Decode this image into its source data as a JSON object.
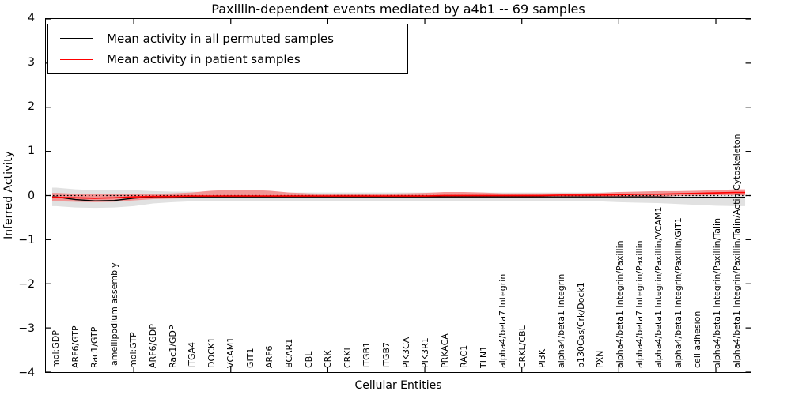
{
  "title": "Paxillin-dependent events mediated by a4b1 -- 69 samples",
  "axes": {
    "ylabel": "Inferred Activity",
    "xlabel": "Cellular Entities",
    "ytick_labels": [
      "4",
      "3",
      "2",
      "1",
      "0",
      "−1",
      "−2",
      "−3",
      "−4"
    ]
  },
  "legend": {
    "items": [
      {
        "label": "Mean activity in all permuted samples",
        "color": "#000000"
      },
      {
        "label": "Mean activity in patient samples",
        "color": "#ff0000"
      }
    ]
  },
  "chart_data": {
    "type": "line",
    "title": "Paxillin-dependent events mediated by a4b1 -- 69 samples",
    "xlabel": "Cellular Entities",
    "ylabel": "Inferred Activity",
    "ylim": [
      -4,
      4
    ],
    "yticks": [
      4,
      3,
      2,
      1,
      0,
      -1,
      -2,
      -3,
      -4
    ],
    "grid": false,
    "legend_position": "upper left",
    "categories": [
      "mol:GDP",
      "ARF6/GTP",
      "Rac1/GTP",
      "lamellipodium assembly",
      "mol:GTP",
      "ARF6/GDP",
      "Rac1/GDP",
      "ITGA4",
      "DOCK1",
      "VCAM1",
      "GIT1",
      "ARF6",
      "BCAR1",
      "CBL",
      "CRK",
      "CRKL",
      "ITGB1",
      "ITGB7",
      "PIK3CA",
      "PIK3R1",
      "PRKACA",
      "RAC1",
      "TLN1",
      "alpha4/beta7 Integrin",
      "CRKL/CBL",
      "PI3K",
      "alpha4/beta1 Integrin",
      "p130Cas/Crk/Dock1",
      "PXN",
      "alpha4/beta1 Integrin/Paxillin",
      "alpha4/beta7 Integrin/Paxillin",
      "alpha4/beta1 Integrin/Paxillin/VCAM1",
      "alpha4/beta1 Integrin/Paxillin/GIT1",
      "cell adhesion",
      "alpha4/beta1 Integrin/Paxillin/Talin",
      "alpha4/beta1 Integrin/Paxillin/Talin/Actin Cytoskeleton"
    ],
    "xtick_major_entities": [
      5,
      10,
      15,
      20,
      25,
      30,
      35
    ],
    "zero_line": {
      "y": 0,
      "style": "dotted",
      "color": "#000000"
    },
    "series": [
      {
        "name": "Mean activity in all permuted samples",
        "color": "#000000",
        "values": [
          -0.03,
          -0.09,
          -0.12,
          -0.11,
          -0.06,
          -0.03,
          -0.03,
          -0.03,
          -0.03,
          -0.03,
          -0.03,
          -0.03,
          -0.03,
          -0.03,
          -0.03,
          -0.03,
          -0.03,
          -0.03,
          -0.03,
          -0.03,
          -0.03,
          -0.03,
          -0.03,
          -0.03,
          -0.03,
          -0.03,
          -0.03,
          -0.03,
          -0.03,
          -0.03,
          -0.03,
          -0.03,
          -0.04,
          -0.04,
          -0.04,
          -0.04
        ]
      },
      {
        "name": "Mean activity in patient samples",
        "color": "#ff0000",
        "values": [
          -0.04,
          -0.05,
          -0.06,
          -0.05,
          -0.03,
          -0.02,
          -0.02,
          -0.01,
          -0.01,
          -0.01,
          -0.01,
          -0.01,
          -0.01,
          -0.01,
          -0.01,
          -0.01,
          -0.01,
          -0.01,
          -0.01,
          -0.01,
          0.0,
          0.0,
          0.0,
          0.0,
          0.0,
          0.0,
          0.01,
          0.01,
          0.01,
          0.02,
          0.03,
          0.03,
          0.04,
          0.05,
          0.06,
          0.07
        ]
      }
    ],
    "bands": [
      {
        "name": "permuted samples spread",
        "color": "#e1e1e1",
        "upper": [
          0.18,
          0.14,
          0.12,
          0.12,
          0.12,
          0.1,
          0.09,
          0.09,
          0.08,
          0.08,
          0.08,
          0.08,
          0.07,
          0.07,
          0.07,
          0.07,
          0.07,
          0.07,
          0.07,
          0.07,
          0.07,
          0.07,
          0.07,
          0.07,
          0.07,
          0.07,
          0.07,
          0.07,
          0.07,
          0.08,
          0.08,
          0.08,
          0.08,
          0.08,
          0.08,
          0.08
        ],
        "lower": [
          -0.24,
          -0.27,
          -0.28,
          -0.27,
          -0.24,
          -0.18,
          -0.15,
          -0.13,
          -0.13,
          -0.13,
          -0.13,
          -0.13,
          -0.12,
          -0.12,
          -0.12,
          -0.12,
          -0.13,
          -0.13,
          -0.12,
          -0.12,
          -0.12,
          -0.12,
          -0.12,
          -0.13,
          -0.12,
          -0.12,
          -0.12,
          -0.13,
          -0.13,
          -0.15,
          -0.16,
          -0.17,
          -0.19,
          -0.21,
          -0.23,
          -0.24
        ]
      },
      {
        "name": "patient samples spread",
        "color": "#f29595",
        "upper": [
          0.06,
          0.04,
          0.03,
          0.03,
          0.04,
          0.04,
          0.05,
          0.07,
          0.11,
          0.13,
          0.13,
          0.11,
          0.07,
          0.05,
          0.04,
          0.04,
          0.04,
          0.04,
          0.05,
          0.06,
          0.08,
          0.08,
          0.07,
          0.05,
          0.05,
          0.05,
          0.05,
          0.05,
          0.06,
          0.08,
          0.09,
          0.1,
          0.1,
          0.11,
          0.12,
          0.14
        ],
        "lower": [
          -0.13,
          -0.14,
          -0.15,
          -0.14,
          -0.11,
          -0.08,
          -0.07,
          -0.06,
          -0.06,
          -0.06,
          -0.06,
          -0.06,
          -0.06,
          -0.06,
          -0.06,
          -0.05,
          -0.05,
          -0.05,
          -0.05,
          -0.05,
          -0.05,
          -0.05,
          -0.05,
          -0.05,
          -0.05,
          -0.04,
          -0.04,
          -0.04,
          -0.03,
          -0.03,
          -0.02,
          -0.02,
          -0.01,
          0.0,
          0.01,
          0.01
        ]
      }
    ]
  }
}
